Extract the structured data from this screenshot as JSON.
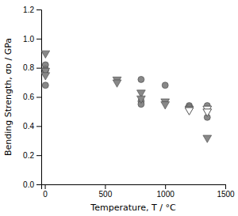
{
  "chart_data": {
    "type": "scatter",
    "xlabel": "Temperature, T / °C",
    "ylabel": "Bending Strength, σᴅ / GPa",
    "xlim": [
      -30,
      1500
    ],
    "ylim": [
      0,
      1.2
    ],
    "xticks": [
      0,
      500,
      1000,
      1500
    ],
    "yticks": [
      {
        "value": 0,
        "label": "0.0"
      },
      0.2,
      0.4,
      0.6,
      0.8,
      {
        "value": 1.0,
        "label": "1.0"
      },
      1.2
    ],
    "series": [
      {
        "marker": "circle",
        "color": "#888888",
        "x": [
          5,
          5,
          5,
          5,
          800,
          800,
          800,
          1000,
          1200,
          1200,
          1350,
          1350
        ],
        "values": [
          0.82,
          0.79,
          0.78,
          0.68,
          0.72,
          0.57,
          0.55,
          0.68,
          0.54,
          0.53,
          0.54,
          0.46
        ]
      },
      {
        "marker": "triangle-down",
        "color": "#888888",
        "x": [
          5,
          5,
          5,
          600,
          600,
          800,
          800,
          1000,
          1000,
          1200,
          1350
        ],
        "values": [
          0.9,
          0.78,
          0.75,
          0.72,
          0.7,
          0.63,
          0.59,
          0.57,
          0.55,
          0.52,
          0.32
        ]
      },
      {
        "marker": "triangle-down-open",
        "color": "#555555",
        "x": [
          1200,
          1350,
          1350
        ],
        "values": [
          0.51,
          0.52,
          0.5
        ]
      }
    ]
  }
}
